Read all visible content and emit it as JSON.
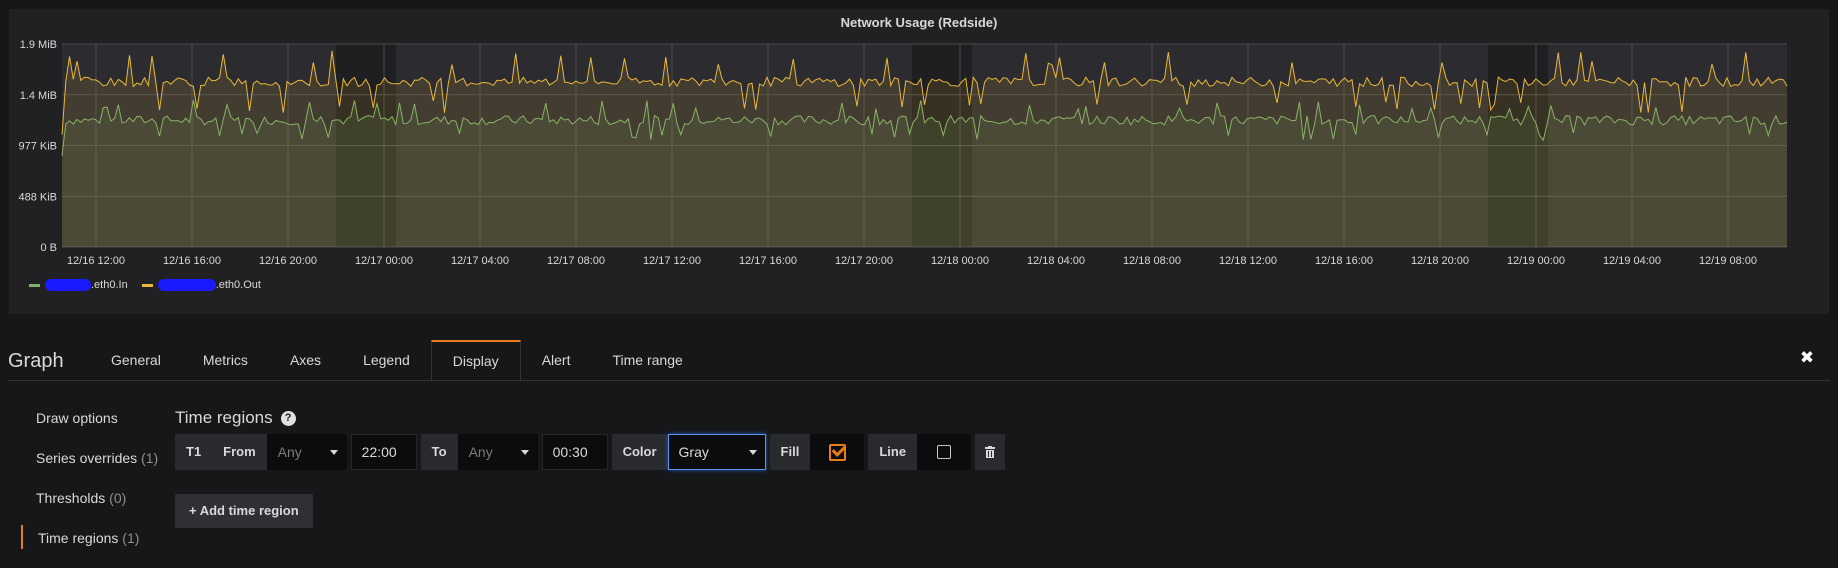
{
  "panel": {
    "title": "Network Usage (Redside)",
    "legend": [
      {
        "label": ".eth0.In",
        "color": "#7eb26d"
      },
      {
        "label": ".eth0.Out",
        "color": "#eab839"
      }
    ]
  },
  "chart_data": {
    "type": "line",
    "title": "Network Usage (Redside)",
    "y_ticks": [
      "0 B",
      "488 KiB",
      "977 KiB",
      "1.4 MiB",
      "1.9 MiB"
    ],
    "y_tick_values": [
      0,
      488,
      977,
      1465,
      1954
    ],
    "ylim": [
      0,
      1954
    ],
    "y_unit": "KiB",
    "x_ticks": [
      "12/16 12:00",
      "12/16 16:00",
      "12/16 20:00",
      "12/17 00:00",
      "12/17 04:00",
      "12/17 08:00",
      "12/17 12:00",
      "12/17 16:00",
      "12/17 20:00",
      "12/18 00:00",
      "12/18 04:00",
      "12/18 08:00",
      "12/18 12:00",
      "12/18 16:00",
      "12/18 20:00",
      "12/19 00:00",
      "12/19 04:00",
      "12/19 08:00"
    ],
    "time_regions": [
      {
        "from": "12/16 22:00",
        "to": "12/17 00:30"
      },
      {
        "from": "12/17 22:00",
        "to": "12/18 00:30"
      },
      {
        "from": "12/18 22:00",
        "to": "12/19 00:30"
      }
    ],
    "series": [
      {
        "name": ".eth0.In",
        "color": "#7eb26d",
        "typical": 1220,
        "spike_max": 1420
      },
      {
        "name": ".eth0.Out",
        "color": "#eab839",
        "typical": 1590,
        "spike_max": 1890
      }
    ],
    "grid": true
  },
  "editor": {
    "title": "Graph",
    "tabs": [
      "General",
      "Metrics",
      "Axes",
      "Legend",
      "Display",
      "Alert",
      "Time range"
    ],
    "active_tab": "Display",
    "sidebar": [
      {
        "label": "Draw options",
        "count": ""
      },
      {
        "label": "Series overrides",
        "count": "(1)"
      },
      {
        "label": "Thresholds",
        "count": "(0)"
      },
      {
        "label": "Time regions",
        "count": "(1)"
      }
    ],
    "section_title": "Time regions",
    "region": {
      "id": "T1",
      "from_label": "From",
      "from_day": "Any",
      "from_time": "22:00",
      "to_label": "To",
      "to_day": "Any",
      "to_time": "00:30",
      "color_label": "Color",
      "color_value": "Gray",
      "fill_label": "Fill",
      "fill_checked": true,
      "line_label": "Line",
      "line_checked": false
    },
    "add_button": "+ Add time region"
  }
}
